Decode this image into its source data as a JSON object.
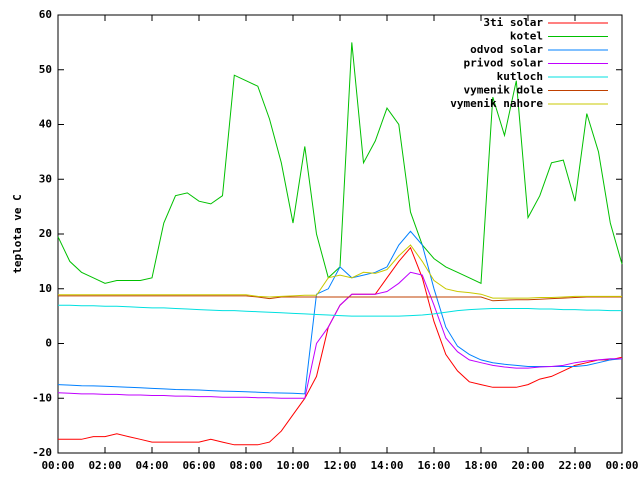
{
  "chart_data": {
    "type": "line",
    "y_label": "teplota ve C",
    "x": [
      0,
      0.5,
      1,
      1.5,
      2,
      2.5,
      3,
      3.5,
      4,
      4.5,
      5,
      5.5,
      6,
      6.5,
      7,
      7.5,
      8,
      8.5,
      9,
      9.5,
      10,
      10.5,
      11,
      11.5,
      12,
      12.5,
      13,
      13.5,
      14,
      14.5,
      15,
      15.5,
      16,
      16.5,
      17,
      17.5,
      18,
      18.5,
      19,
      19.5,
      20,
      20.5,
      21,
      21.5,
      22,
      22.5,
      23,
      23.5,
      24
    ],
    "xlim": [
      0,
      24
    ],
    "xticks": [
      {
        "value": 0,
        "label": "00:00"
      },
      {
        "value": 2,
        "label": "02:00"
      },
      {
        "value": 4,
        "label": "04:00"
      },
      {
        "value": 6,
        "label": "06:00"
      },
      {
        "value": 8,
        "label": "08:00"
      },
      {
        "value": 10,
        "label": "10:00"
      },
      {
        "value": 12,
        "label": "12:00"
      },
      {
        "value": 14,
        "label": "14:00"
      },
      {
        "value": 16,
        "label": "16:00"
      },
      {
        "value": 18,
        "label": "18:00"
      },
      {
        "value": 20,
        "label": "20:00"
      },
      {
        "value": 22,
        "label": "22:00"
      },
      {
        "value": 24,
        "label": "00:00"
      }
    ],
    "ylim": [
      -20,
      60
    ],
    "yticks": [
      -20,
      -10,
      0,
      10,
      20,
      30,
      40,
      50,
      60
    ],
    "grid": false,
    "legend_position": "top-right",
    "series": [
      {
        "name": "3ti solar",
        "color": "#ff0000",
        "values": [
          -17.5,
          -17.5,
          -17.5,
          -17,
          -17,
          -16.5,
          -17,
          -17.5,
          -18,
          -18,
          -18,
          -18,
          -18,
          -17.5,
          -18,
          -18.5,
          -18.5,
          -18.5,
          -18,
          -16,
          -13,
          -10,
          -6,
          3,
          7,
          9,
          9,
          9,
          12,
          15,
          17.5,
          12,
          4,
          -2,
          -5,
          -7,
          -7.5,
          -8,
          -8,
          -8,
          -7.5,
          -6.5,
          -6,
          -5,
          -4,
          -3.5,
          -3,
          -3,
          -2.5
        ]
      },
      {
        "name": "kotel",
        "color": "#00c000",
        "values": [
          19.5,
          15,
          13,
          12,
          11,
          11.5,
          11.5,
          11.5,
          12,
          22,
          27,
          27.5,
          26,
          25.5,
          27,
          49,
          48,
          47,
          41,
          33,
          22,
          36,
          20,
          12,
          14,
          55,
          33,
          37,
          43,
          40,
          24,
          18,
          15.5,
          14,
          13,
          12,
          11,
          45,
          38,
          48,
          23,
          27,
          33,
          33.5,
          26,
          42,
          35,
          22,
          14.5
        ]
      },
      {
        "name": "odvod solar",
        "color": "#0080ff",
        "values": [
          -7.5,
          -7.6,
          -7.7,
          -7.75,
          -7.8,
          -7.9,
          -8,
          -8.1,
          -8.2,
          -8.3,
          -8.4,
          -8.45,
          -8.5,
          -8.6,
          -8.7,
          -8.75,
          -8.8,
          -8.9,
          -9,
          -9.05,
          -9.1,
          -9.2,
          9,
          10,
          14,
          12,
          12.5,
          13,
          14,
          18,
          20.5,
          18,
          10,
          3,
          -0.5,
          -2,
          -3,
          -3.5,
          -3.8,
          -4,
          -4.2,
          -4.2,
          -4.2,
          -4.2,
          -4.2,
          -4,
          -3.5,
          -3,
          -2.8
        ]
      },
      {
        "name": "privod solar",
        "color": "#c000ff",
        "values": [
          -9,
          -9.1,
          -9.2,
          -9.2,
          -9.3,
          -9.3,
          -9.4,
          -9.4,
          -9.5,
          -9.5,
          -9.6,
          -9.6,
          -9.7,
          -9.7,
          -9.8,
          -9.8,
          -9.8,
          -9.9,
          -9.9,
          -10,
          -10,
          -10,
          0,
          3,
          7,
          9,
          9,
          9,
          9.5,
          11,
          13,
          12.5,
          7,
          1,
          -1.5,
          -3,
          -3.5,
          -4,
          -4.3,
          -4.5,
          -4.5,
          -4.3,
          -4.2,
          -4,
          -3.5,
          -3.2,
          -3,
          -2.8,
          -2.8
        ]
      },
      {
        "name": "kutloch",
        "color": "#00e0e0",
        "values": [
          7,
          7,
          6.9,
          6.9,
          6.8,
          6.8,
          6.7,
          6.6,
          6.5,
          6.5,
          6.4,
          6.3,
          6.2,
          6.1,
          6,
          6,
          5.9,
          5.8,
          5.7,
          5.6,
          5.5,
          5.4,
          5.3,
          5.2,
          5.1,
          5,
          5,
          5,
          5,
          5,
          5.1,
          5.2,
          5.4,
          5.7,
          6,
          6.2,
          6.3,
          6.4,
          6.4,
          6.4,
          6.4,
          6.3,
          6.3,
          6.2,
          6.2,
          6.1,
          6.1,
          6,
          6
        ]
      },
      {
        "name": "vymenik dole",
        "color": "#c04000",
        "values": [
          8.7,
          8.7,
          8.7,
          8.7,
          8.7,
          8.7,
          8.7,
          8.7,
          8.7,
          8.7,
          8.7,
          8.7,
          8.7,
          8.7,
          8.7,
          8.7,
          8.7,
          8.5,
          8.2,
          8.5,
          8.5,
          8.5,
          8.5,
          8.5,
          8.5,
          8.5,
          8.5,
          8.5,
          8.5,
          8.5,
          8.5,
          8.5,
          8.5,
          8.5,
          8.5,
          8.5,
          8.5,
          7.8,
          7.9,
          8,
          8,
          8.1,
          8.2,
          8.3,
          8.4,
          8.5,
          8.5,
          8.5,
          8.5
        ]
      },
      {
        "name": "vymenik nahore",
        "color": "#c8c800",
        "values": [
          8.9,
          8.9,
          8.9,
          8.9,
          8.9,
          8.9,
          8.9,
          8.9,
          8.9,
          8.9,
          8.9,
          8.9,
          8.9,
          8.9,
          8.9,
          8.9,
          8.9,
          8.6,
          8.5,
          8.6,
          8.7,
          8.8,
          8.8,
          12,
          12.5,
          12,
          13,
          12.8,
          13.5,
          16,
          18,
          15,
          11.5,
          10,
          9.5,
          9.3,
          9,
          8.3,
          8.3,
          8.3,
          8.3,
          8.4,
          8.4,
          8.5,
          8.6,
          8.6,
          8.6,
          8.6,
          8.6
        ]
      }
    ]
  }
}
